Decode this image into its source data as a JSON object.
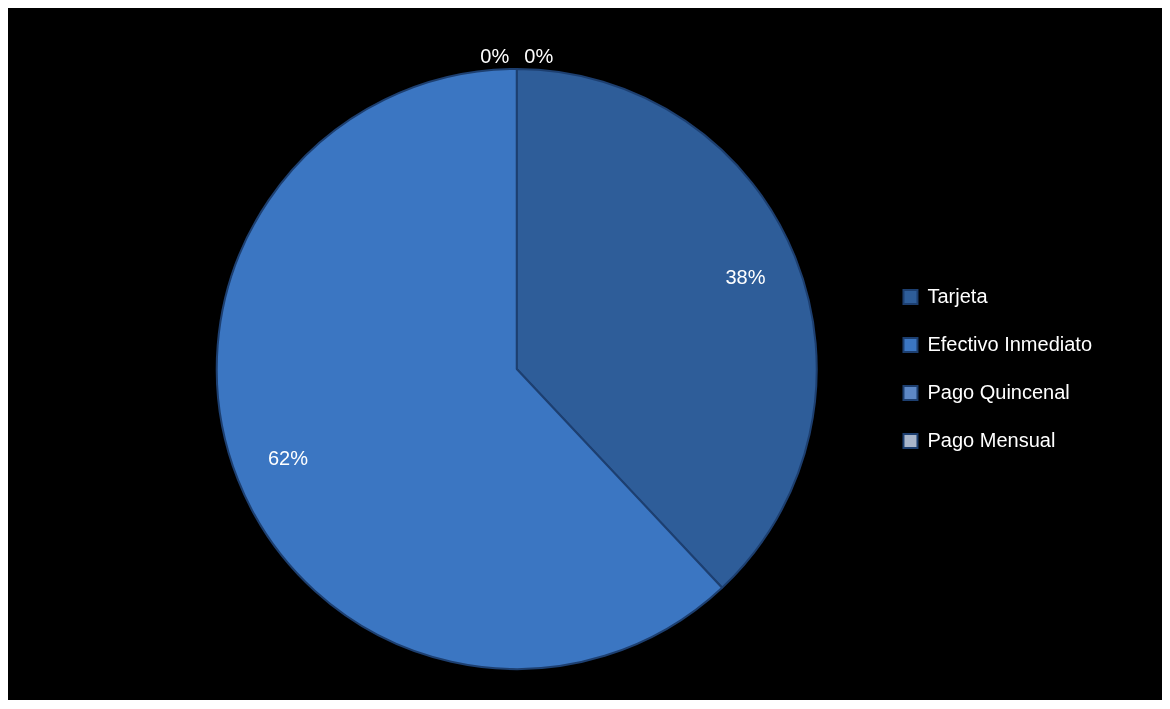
{
  "chart_data": {
    "type": "pie",
    "categories": [
      "Tarjeta",
      "Efectivo Inmediato",
      "Pago Quincenal",
      "Pago Mensual"
    ],
    "values": [
      38,
      62,
      0,
      0
    ],
    "colors": [
      "#2e5d99",
      "#3b76c2",
      "#5d88c6",
      "#a9b6cb"
    ],
    "value_labels": [
      "38%",
      "62%",
      "0%",
      "0%"
    ],
    "legend": "right"
  }
}
